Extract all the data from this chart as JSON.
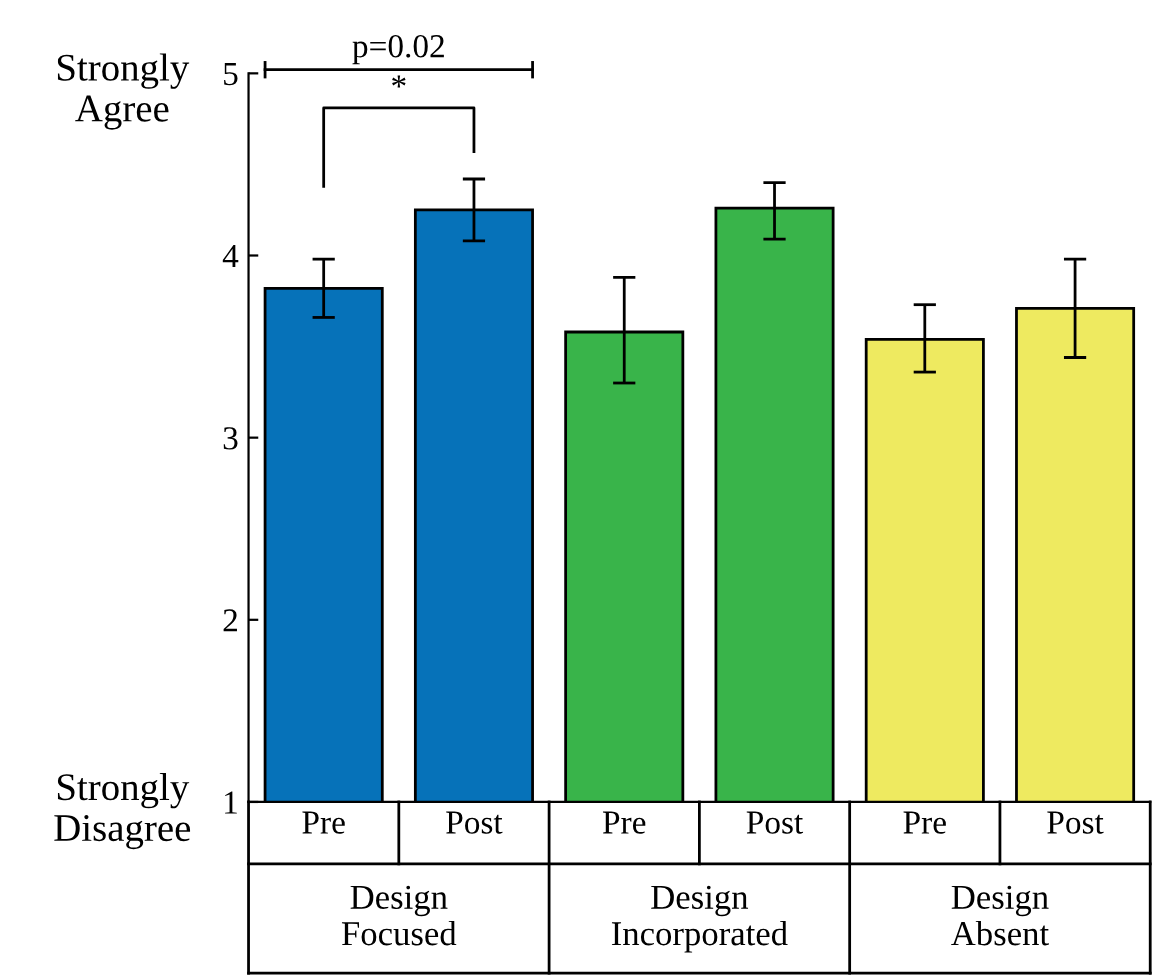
{
  "chart_data": {
    "type": "bar",
    "categories": [
      "Pre",
      "Post",
      "Pre",
      "Post",
      "Pre",
      "Post"
    ],
    "values": [
      3.82,
      4.25,
      3.58,
      4.26,
      3.54,
      3.71
    ],
    "colors": [
      "#0672b9",
      "#0672b9",
      "#39b44a",
      "#39b44a",
      "#eeea60",
      "#eeea60"
    ],
    "errors": [
      [
        3.66,
        3.98
      ],
      [
        4.08,
        4.42
      ],
      [
        3.3,
        3.88
      ],
      [
        4.09,
        4.4
      ],
      [
        3.36,
        3.73
      ],
      [
        3.44,
        3.98
      ]
    ],
    "ylim": [
      1,
      5
    ],
    "yticks": [
      1,
      2,
      3,
      4,
      5
    ],
    "annotations": [
      "Design\nFocused",
      "Design\nIncorporated",
      "Design\nAbsent",
      "p=0.02",
      "*",
      "Strongly\nAgree",
      "Strongly\nDisagree"
    ],
    "grid": false,
    "legend": false
  }
}
